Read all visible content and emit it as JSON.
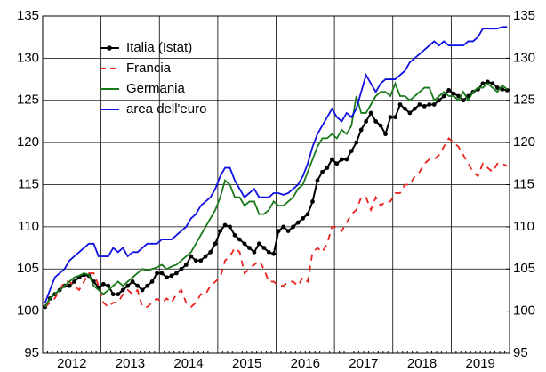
{
  "chart_data": {
    "type": "line",
    "categories": [
      null,
      null,
      null,
      null,
      null,
      null,
      "2012",
      null,
      null,
      null,
      null,
      null,
      null,
      null,
      null,
      null,
      null,
      null,
      "2013",
      null,
      null,
      null,
      null,
      null,
      null,
      null,
      null,
      null,
      null,
      null,
      "2014",
      null,
      null,
      null,
      null,
      null,
      null,
      null,
      null,
      null,
      null,
      null,
      "2015",
      null,
      null,
      null,
      null,
      null,
      null,
      null,
      null,
      null,
      null,
      null,
      "2016",
      null,
      null,
      null,
      null,
      null,
      null,
      null,
      null,
      null,
      null,
      null,
      "2017",
      null,
      null,
      null,
      null,
      null,
      null,
      null,
      null,
      null,
      null,
      null,
      "2018",
      null,
      null,
      null,
      null,
      null,
      null,
      null,
      null,
      null,
      null,
      null,
      "2019",
      null,
      null,
      null,
      null,
      null
    ],
    "series": [
      {
        "name": "Italia (Istat)",
        "color": "#000000",
        "marker": true,
        "dashed": false,
        "values": [
          100.5,
          101.5,
          102,
          102.5,
          103,
          103,
          103.5,
          104,
          104.3,
          104.2,
          103.5,
          102.8,
          103.2,
          103,
          102,
          102,
          102.5,
          103,
          103.5,
          103,
          102.5,
          103,
          103.5,
          104.5,
          104.5,
          104,
          104.2,
          104.5,
          105,
          105.5,
          106.5,
          106,
          106,
          106.5,
          107,
          108,
          109.5,
          110.2,
          110,
          109,
          108.5,
          108,
          107.5,
          107,
          108,
          107.5,
          107,
          106.8,
          109.5,
          110,
          109.5,
          110,
          110.5,
          111,
          111.5,
          113,
          115.5,
          116.5,
          117,
          118,
          117.5,
          118,
          118,
          119,
          120,
          121.5,
          122.5,
          123.5,
          122.5,
          122,
          121,
          123,
          123,
          124.5,
          124,
          123.5,
          124,
          124.5,
          124.3,
          124.5,
          124.5,
          125,
          125.5,
          126.2,
          125.8,
          125.5,
          125,
          125.5,
          126,
          126.3,
          127,
          127.2,
          127,
          126.5,
          126.3,
          126.2
        ]
      },
      {
        "name": "Francia",
        "color": "#e8221c",
        "marker": false,
        "dashed": true,
        "values": [
          100.5,
          101,
          101.5,
          102.5,
          103.5,
          103.5,
          103,
          102.5,
          103.5,
          104.5,
          104.5,
          103,
          101,
          100.5,
          101,
          101,
          102,
          102.5,
          102,
          102.5,
          100.5,
          100.5,
          101,
          101.5,
          101,
          101.5,
          101,
          102,
          102.5,
          101,
          100.5,
          101,
          102,
          102,
          103,
          103.5,
          104,
          106,
          106.5,
          107.5,
          107,
          104.5,
          105,
          105.5,
          106,
          105,
          103.5,
          103.5,
          103,
          103,
          103.5,
          103.5,
          103,
          104,
          103.5,
          107,
          107.5,
          107,
          108,
          110,
          110,
          109.5,
          110.5,
          111.5,
          112,
          113.5,
          113.5,
          112,
          113.5,
          112.5,
          113,
          113,
          114,
          114,
          115,
          115,
          116,
          116.5,
          117.5,
          118,
          118,
          118.5,
          119.5,
          120.5,
          120,
          119.5,
          118.5,
          117.5,
          116.5,
          116,
          117.5,
          117,
          116.5,
          117.5,
          117.5,
          117.2
        ]
      },
      {
        "name": "Germania",
        "color": "#1a7a1a",
        "marker": false,
        "dashed": false,
        "values": [
          100.5,
          101.5,
          102,
          102.5,
          103,
          103.5,
          104,
          104.2,
          104.5,
          104.3,
          103,
          102.5,
          102,
          102.5,
          103,
          103.5,
          103,
          103.5,
          104,
          104.5,
          105,
          104.8,
          105,
          105.2,
          105.5,
          105,
          105.3,
          105.5,
          106,
          106.5,
          107,
          108,
          109,
          110,
          111,
          112,
          113.5,
          115.5,
          115,
          113.5,
          113.5,
          112.5,
          113,
          113,
          111.5,
          111.5,
          112,
          113,
          112.5,
          112.5,
          113,
          113.5,
          114.5,
          115,
          116.5,
          118,
          119.5,
          120.5,
          120.5,
          121,
          120.5,
          121.5,
          121,
          122,
          125.5,
          123.5,
          123.5,
          124.5,
          125.5,
          126,
          126,
          125.5,
          127,
          125.5,
          125.5,
          125,
          125.5,
          126,
          126.5,
          126.5,
          125,
          125.5,
          126,
          125.5,
          125.5,
          125,
          126,
          125,
          126,
          126.5,
          126.5,
          127,
          126.5,
          126,
          126.8,
          126.3
        ]
      },
      {
        "name": "area dell'euro",
        "color": "#1010e0",
        "marker": false,
        "dashed": false,
        "values": [
          101,
          102.5,
          104,
          104.5,
          105,
          106,
          106.5,
          107,
          107.5,
          108,
          108,
          106.5,
          106.5,
          106.5,
          107.5,
          107,
          107.5,
          106.5,
          107,
          107,
          107.5,
          108,
          108,
          108,
          108.5,
          108.5,
          108.5,
          109,
          109.5,
          110,
          111,
          111.5,
          112.5,
          113,
          113.5,
          114.5,
          116,
          117,
          117,
          115.5,
          114.5,
          113.5,
          114,
          114.5,
          113.5,
          113.5,
          113.5,
          114,
          114,
          113.8,
          114,
          114.5,
          115,
          116,
          117.5,
          119.5,
          121,
          122,
          123,
          124,
          123,
          122.5,
          123.5,
          123,
          124,
          126,
          128,
          127,
          126,
          127,
          127.5,
          127.5,
          127.5,
          128,
          128.5,
          129.5,
          130,
          130.5,
          131,
          131.5,
          132,
          131.5,
          132,
          131.5,
          131.5,
          131.5,
          131.5,
          132,
          132,
          132.5,
          133.5,
          133.5,
          133.5,
          133.5,
          133.7,
          133.7
        ]
      }
    ],
    "ylim": [
      95,
      135
    ],
    "yticks": [
      95,
      100,
      105,
      110,
      115,
      120,
      125,
      130,
      135
    ],
    "y2lim": [
      95,
      135
    ],
    "y2ticks": [
      95,
      100,
      105,
      110,
      115,
      120,
      125,
      130,
      135
    ],
    "grid": true,
    "legend": "upper left"
  }
}
